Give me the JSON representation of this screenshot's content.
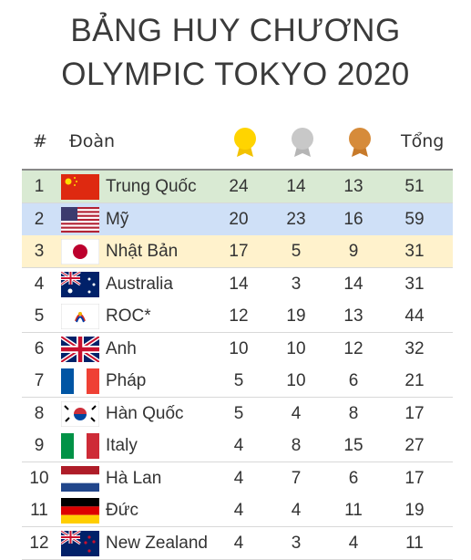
{
  "header": {
    "title": [
      "BẢNG HUY CHƯƠNG",
      "OLYMPIC TOKYO 2020"
    ]
  },
  "table": {
    "headers": {
      "rank": "#",
      "team": "Đoàn",
      "total": "Tổng"
    },
    "rows": [
      [
        1,
        "Trung Quốc",
        24,
        14,
        13,
        51
      ],
      [
        2,
        "Mỹ",
        20,
        23,
        16,
        59
      ],
      [
        3,
        "Nhật Bản",
        17,
        5,
        9,
        31
      ],
      [
        4,
        "Australia",
        14,
        3,
        14,
        31
      ],
      [
        5,
        "ROC*",
        12,
        19,
        13,
        44
      ],
      [
        6,
        "Anh",
        10,
        10,
        12,
        32
      ],
      [
        7,
        "Pháp",
        5,
        10,
        6,
        21
      ],
      [
        8,
        "Hàn Quốc",
        5,
        4,
        8,
        17
      ],
      [
        9,
        "Italy",
        4,
        8,
        15,
        27
      ],
      [
        10,
        "Hà Lan",
        4,
        7,
        6,
        17
      ],
      [
        11,
        "Đức",
        4,
        4,
        11,
        19
      ],
      [
        12,
        "New Zealand",
        4,
        3,
        4,
        11
      ]
    ]
  }
}
